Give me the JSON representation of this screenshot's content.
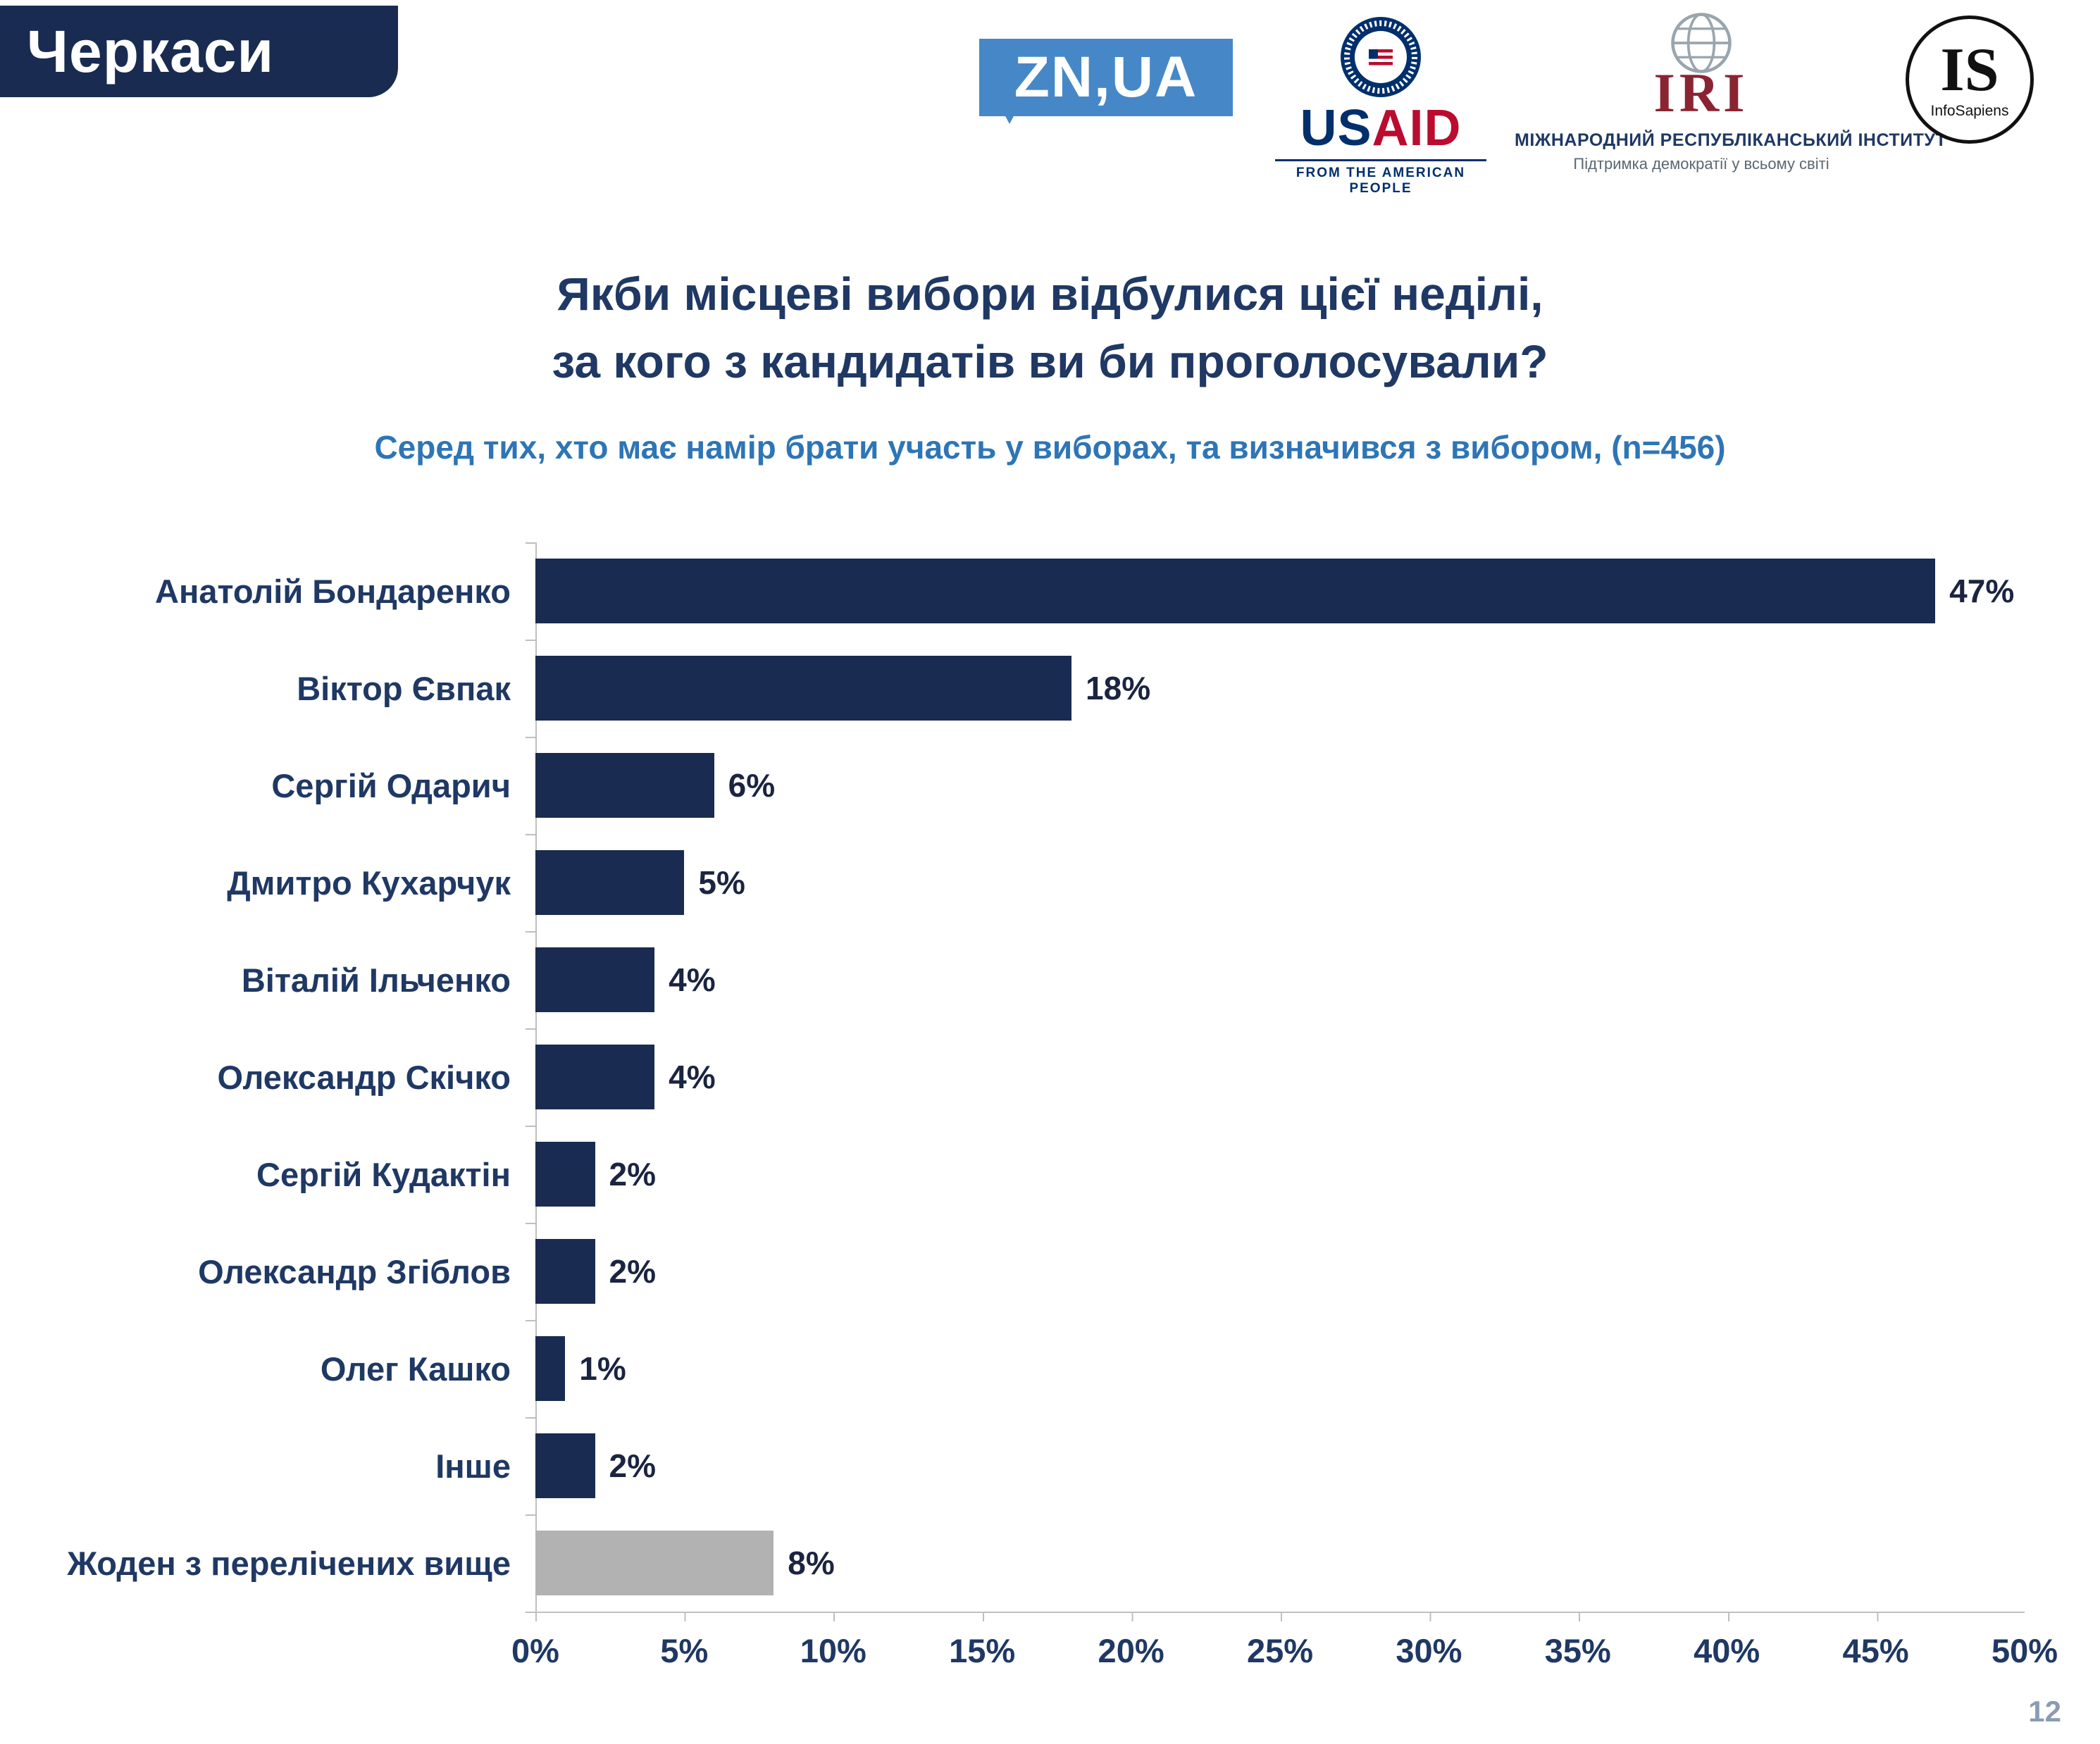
{
  "header": {
    "region_label": "Черкаси"
  },
  "logos": {
    "znua_text": "ZN,UA",
    "usaid_name_us": "US",
    "usaid_name_aid": "AID",
    "usaid_tagline": "FROM THE AMERICAN PEOPLE",
    "iri_abbr": "IRI",
    "iri_name": "МІЖНАРОДНИЙ РЕСПУБЛІКАНСЬКИЙ ІНСТИТУТ",
    "iri_tagline": "Підтримка демократії у всьому світі",
    "infosapiens_abbr": "IS",
    "infosapiens_name": "InfoSapiens"
  },
  "chart_data": {
    "type": "bar",
    "orientation": "horizontal",
    "title_line1": "Якби місцеві вибори відбулися цієї неділі,",
    "title_line2": "за кого з кандидатів ви би проголосували?",
    "subtitle": "Серед тих, хто має намір брати участь у виборах, та визначився з вибором, (n=456)",
    "categories": [
      "Анатолій Бондаренко",
      "Віктор Євпак",
      "Сергій Одарич",
      "Дмитро Кухарчук",
      "Віталій Ільченко",
      "Олександр Скічко",
      "Сергій Кудактін",
      "Олександр Згіблов",
      "Олег Кашко",
      "Інше",
      "Жоден з перелічених вище"
    ],
    "values": [
      47,
      18,
      6,
      5,
      4,
      4,
      2,
      2,
      1,
      2,
      8
    ],
    "value_labels": [
      "47%",
      "18%",
      "6%",
      "5%",
      "4%",
      "4%",
      "2%",
      "2%",
      "1%",
      "2%",
      "8%"
    ],
    "xlim": [
      0,
      50
    ],
    "xticks": [
      "0%",
      "5%",
      "10%",
      "15%",
      "20%",
      "25%",
      "30%",
      "35%",
      "40%",
      "45%",
      "50%"
    ],
    "xlabel": "",
    "ylabel": "",
    "grid": false,
    "legend": false,
    "bar_color": "#192b50",
    "none_bar_color": "#b2b2b2",
    "none_category": "Жоден з перелічених вище"
  },
  "footer": {
    "page_number": "12"
  },
  "colors": {
    "accent_navy": "#192b50",
    "title_navy": "#1f3864",
    "subtitle_blue": "#2e75b6",
    "znua_blue": "#4688c7",
    "usaid_navy": "#002f6c",
    "usaid_red": "#ba0c2f",
    "iri_maroon": "#8a2432",
    "gray_bar": "#b2b2b2",
    "axis_gray": "#bfbfbf"
  }
}
